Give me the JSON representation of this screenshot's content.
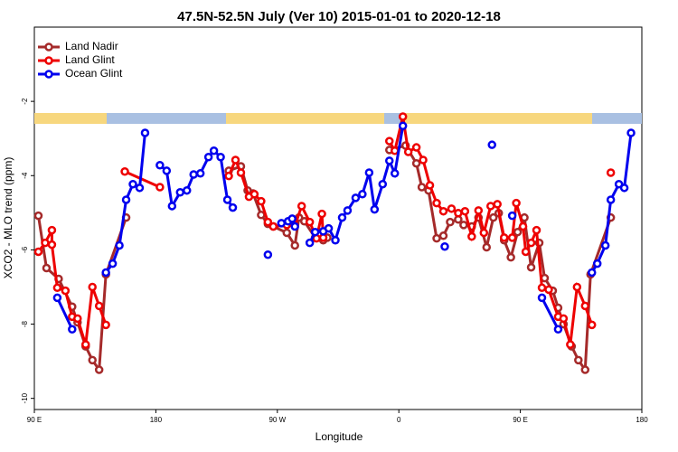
{
  "chart_data": {
    "type": "line",
    "title": "47.5N-52.5N July (Ver 10)   2015-01-01 to 2020-12-18",
    "xlabel": "Longitude",
    "ylabel": "XCO2 - MLO trend (ppm)",
    "xlim": [
      90,
      540
    ],
    "ylim": [
      -10.3,
      0
    ],
    "xticks": [
      {
        "value": 90,
        "label": "90 E"
      },
      180,
      {
        "value": 270,
        "label": "90 W"
      },
      {
        "value": 360,
        "label": "0"
      },
      {
        "value": 450,
        "label": "90 E"
      },
      {
        "value": 540,
        "label": "180"
      }
    ],
    "yticks": [
      -2,
      -4,
      -6,
      -8,
      -10
    ],
    "legend": "upper left",
    "series": [
      {
        "name": "Land Nadir",
        "color": "#a52a2a",
        "x": [
          93,
          99,
          108,
          118,
          122,
          128,
          133,
          138,
          143,
          158,
          null,
          234,
          243,
          248,
          252,
          258,
          263,
          267,
          277,
          283,
          286,
          290,
          298,
          304,
          307,
          null,
          353,
          365,
          373,
          377,
          382,
          388,
          393,
          398,
          404,
          408,
          414,
          419,
          425,
          430,
          434,
          438,
          443,
          448,
          453,
          458,
          464,
          468,
          474,
          478,
          482,
          488,
          493,
          498,
          502,
          517
        ],
        "values": [
          -5.08,
          -6.49,
          -6.78,
          -7.53,
          -7.95,
          -8.6,
          -8.97,
          -9.23,
          -6.66,
          -5.13,
          null,
          -3.87,
          -3.75,
          -4.4,
          -4.48,
          -5.06,
          -5.3,
          -5.37,
          -5.54,
          -5.88,
          -5.13,
          -5.23,
          -5.67,
          -5.74,
          -5.67,
          null,
          -3.31,
          -3.19,
          -3.67,
          -4.31,
          -4.4,
          -5.69,
          -5.62,
          -5.25,
          -5.18,
          -5.33,
          -5.37,
          -5.13,
          -5.93,
          -5.13,
          -5.01,
          -5.74,
          -6.2,
          -5.52,
          -5.13,
          -6.47,
          -5.81,
          -6.76,
          -7.1,
          -7.56,
          -8.0,
          -8.6,
          -8.97,
          -9.23,
          -6.66,
          -5.13
        ]
      },
      {
        "name": "Land Glint",
        "color": "#ee0000",
        "x": [
          93,
          98,
          103,
          103,
          107,
          113,
          118,
          122,
          128,
          133,
          138,
          143,
          null,
          157,
          183,
          null,
          234,
          239,
          243,
          249,
          253,
          258,
          263,
          267,
          277,
          283,
          288,
          294,
          299,
          303,
          304,
          null,
          353,
          357,
          363,
          367,
          373,
          378,
          383,
          388,
          393,
          399,
          404,
          409,
          414,
          419,
          423,
          428,
          433,
          438,
          444,
          447,
          452,
          454,
          458,
          462,
          466,
          471,
          478,
          482,
          487,
          492,
          498,
          503,
          null,
          517
        ],
        "values": [
          -6.05,
          -5.81,
          -5.47,
          -5.86,
          -7.02,
          -7.1,
          -7.8,
          -7.85,
          -8.55,
          -7.0,
          -7.51,
          -8.02,
          null,
          -3.89,
          -4.31,
          null,
          -4.01,
          -3.58,
          -3.92,
          -4.57,
          -4.5,
          -4.69,
          -5.25,
          -5.37,
          -5.33,
          -5.35,
          -4.82,
          -5.25,
          -5.69,
          -5.03,
          -5.67,
          null,
          -3.07,
          -3.33,
          -2.41,
          -3.36,
          -3.24,
          -3.58,
          -4.26,
          -4.74,
          -4.96,
          -4.89,
          -5.01,
          -4.96,
          -5.64,
          -4.94,
          -5.54,
          -4.82,
          -4.77,
          -5.67,
          -5.67,
          -4.74,
          -5.37,
          -6.05,
          -5.81,
          -5.47,
          -7.02,
          -7.07,
          -7.8,
          -7.85,
          -8.55,
          -7.0,
          -7.51,
          -8.02,
          null,
          -3.92
        ]
      },
      {
        "name": "Ocean Glint",
        "color": "#0000ee",
        "x": [
          107,
          118,
          null,
          143,
          148,
          153,
          158,
          163,
          168,
          172,
          null,
          183,
          188,
          192,
          198,
          203,
          208,
          213,
          219,
          223,
          228,
          233,
          237,
          null,
          263,
          null,
          273,
          278,
          281,
          283,
          null,
          294,
          298,
          304,
          308,
          313,
          318,
          322,
          328,
          333,
          338,
          342,
          348,
          353,
          357,
          363,
          null,
          394,
          null,
          429,
          null,
          444,
          null,
          466,
          478,
          null,
          503,
          507,
          513,
          517,
          523,
          527,
          532
        ],
        "values": [
          -7.29,
          -8.14,
          null,
          -6.61,
          -6.37,
          -5.88,
          -4.65,
          -4.23,
          -4.33,
          -2.85,
          null,
          -3.72,
          -3.87,
          -4.82,
          -4.45,
          -4.4,
          -3.97,
          -3.94,
          -3.5,
          -3.33,
          -3.5,
          -4.65,
          -4.86,
          null,
          -6.13,
          null,
          -5.28,
          -5.23,
          -5.16,
          -5.37,
          null,
          -5.81,
          -5.52,
          -5.5,
          -5.42,
          -5.74,
          -5.13,
          -4.94,
          -4.6,
          -4.5,
          -3.92,
          -4.91,
          -4.23,
          -3.6,
          -3.94,
          -2.66,
          null,
          -5.91,
          null,
          -3.17,
          null,
          -5.08,
          null,
          -7.29,
          -8.14,
          null,
          -6.61,
          -6.37,
          -5.88,
          -4.65,
          -4.23,
          -4.33,
          -2.85
        ]
      }
    ]
  }
}
